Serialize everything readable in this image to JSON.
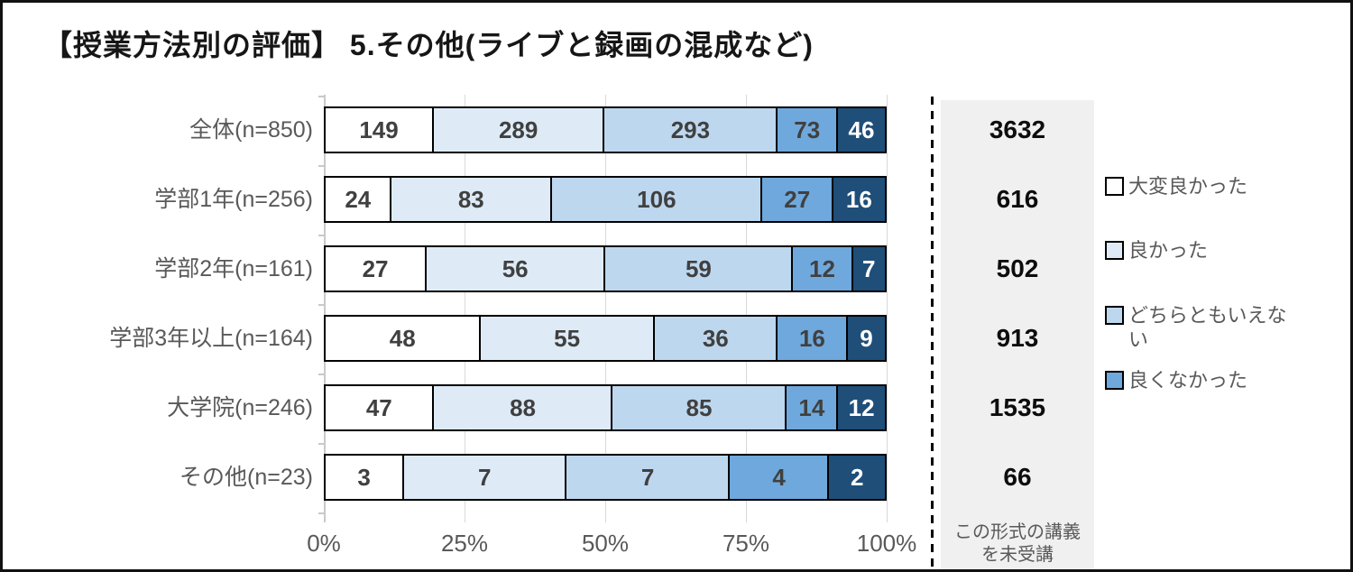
{
  "title": "【授業方法別の評価】 5.その他(ライブと録画の混成など)",
  "chart_data": {
    "type": "bar",
    "orientation": "horizontal",
    "stacked": true,
    "normalized": "each row scaled to 100%",
    "title": "【授業方法別の評価】 5.その他(ライブと録画の混成など)",
    "categories": [
      "全体(n=850)",
      "学部1年(n=256)",
      "学部2年(n=161)",
      "学部3年以上(n=164)",
      "大学院(n=246)",
      "その他(n=23)"
    ],
    "series": [
      {
        "name": "大変良かった",
        "color": "#FFFFFF",
        "label_color": "#404040",
        "values": [
          149,
          24,
          27,
          48,
          47,
          3
        ]
      },
      {
        "name": "良かった",
        "color": "#DEEBF7",
        "label_color": "#404040",
        "values": [
          289,
          83,
          56,
          55,
          88,
          7
        ]
      },
      {
        "name": "どちらともいえない",
        "color": "#BDD7EE",
        "label_color": "#404040",
        "values": [
          293,
          106,
          59,
          36,
          85,
          7
        ]
      },
      {
        "name": "良くなかった",
        "color": "#6FA8DC",
        "label_color": "#404040",
        "values": [
          73,
          27,
          12,
          16,
          14,
          4
        ]
      },
      {
        "name": "",
        "color": "#1F4E79",
        "label_color": "#FFFFFF",
        "values": [
          46,
          16,
          7,
          9,
          12,
          2
        ]
      }
    ],
    "x_axis": {
      "ticks": [
        "0%",
        "25%",
        "50%",
        "75%",
        "100%"
      ],
      "range": [
        0,
        100
      ],
      "gridlines": true
    },
    "legend": {
      "position": "right",
      "entries": [
        "大変良かった",
        "良かった",
        "どちらともいえない",
        "良くなかった"
      ]
    },
    "side_column": {
      "values": [
        "3632",
        "616",
        "502",
        "913",
        "1535",
        "66"
      ],
      "label": "この形式の講義を未受講",
      "background": "#F0F0F0"
    }
  }
}
